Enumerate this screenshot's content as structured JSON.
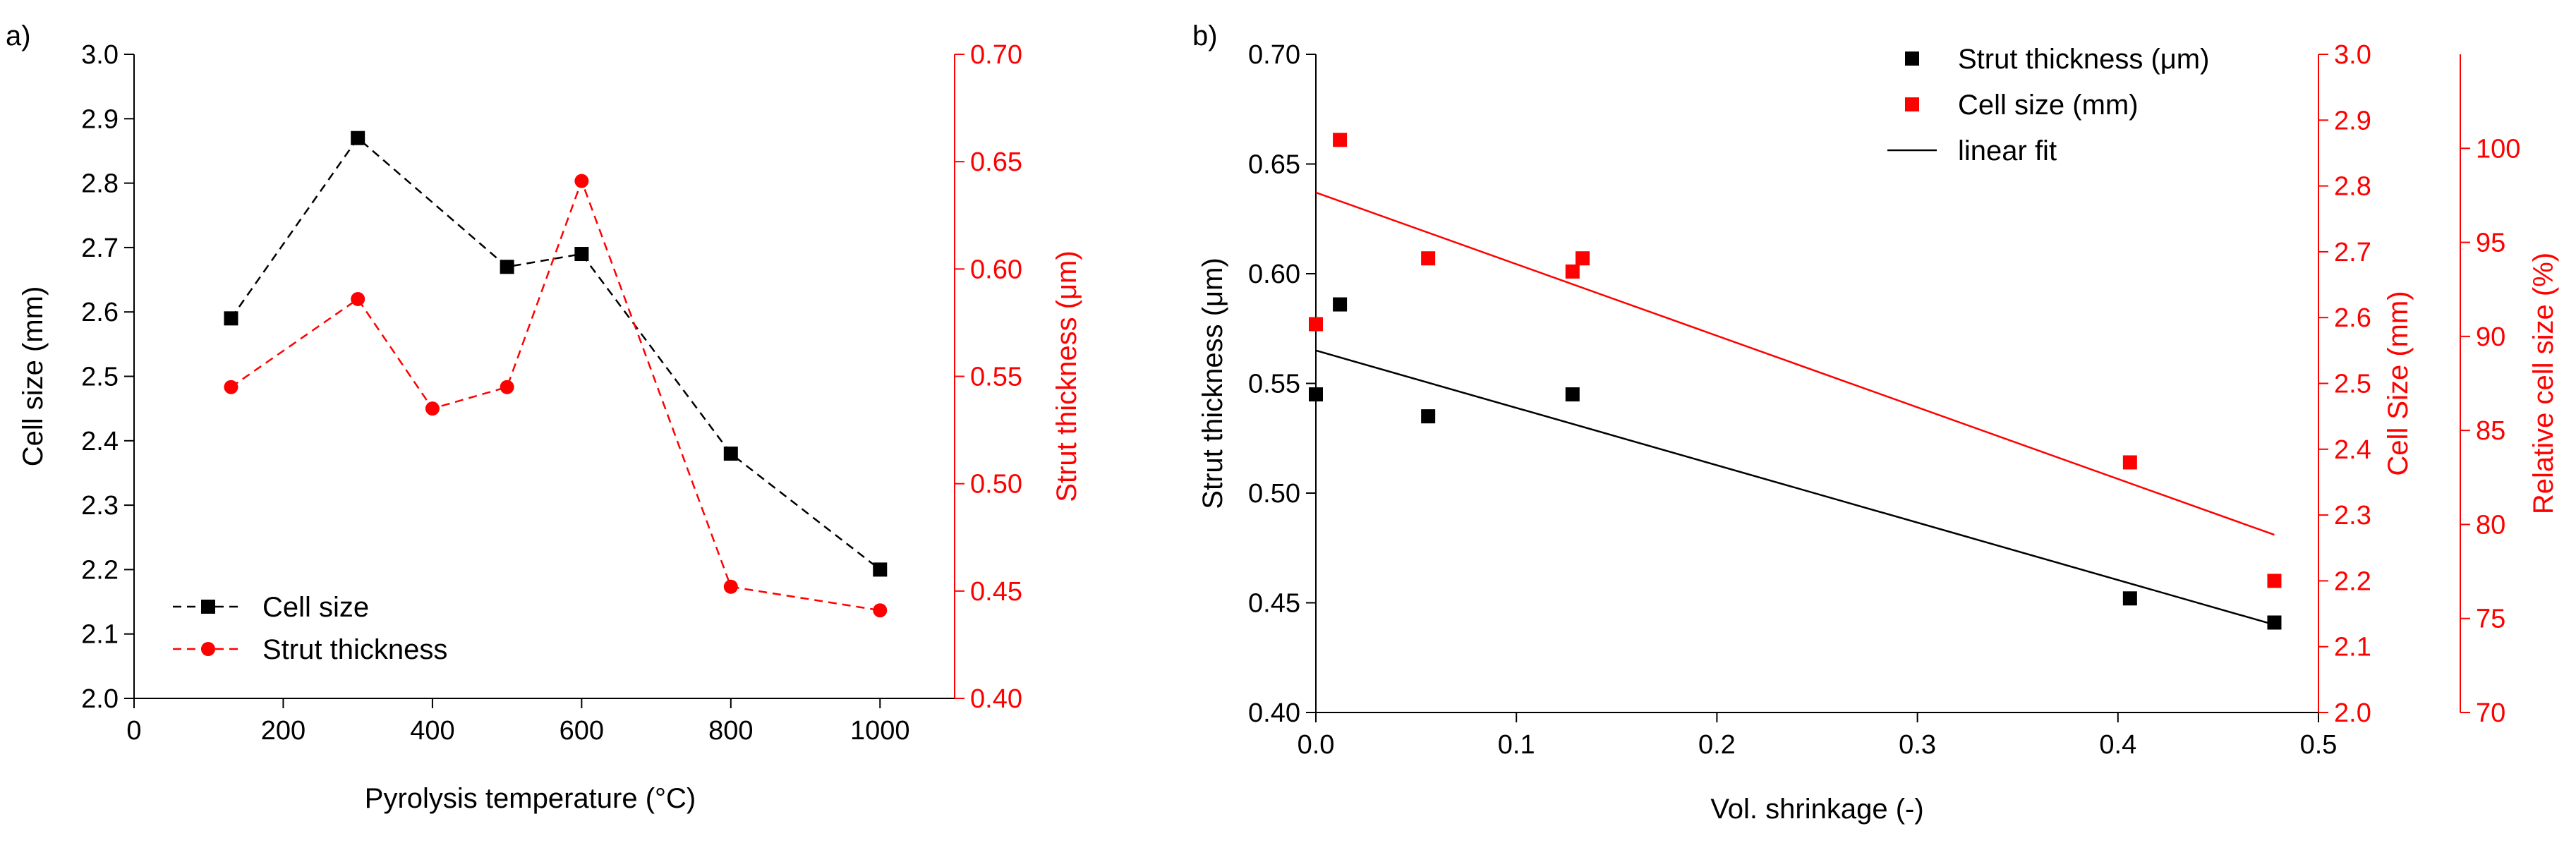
{
  "chart_data": [
    {
      "panel_label": "a)",
      "type": "line",
      "xlabel": "Pyrolysis temperature (°C)",
      "xlim": [
        0,
        1100
      ],
      "xticks": [
        0,
        200,
        400,
        600,
        800,
        1000
      ],
      "ylabel_left": "Cell size (mm)",
      "ylim_left": [
        2.0,
        3.0
      ],
      "yticks_left": [
        "2.0",
        "2.1",
        "2.2",
        "2.3",
        "2.4",
        "2.5",
        "2.6",
        "2.7",
        "2.8",
        "2.9",
        "3.0"
      ],
      "ylabel_right": "Strut thickness (μm)",
      "ylim_right": [
        0.4,
        0.7
      ],
      "yticks_right": [
        "0.40",
        "0.45",
        "0.50",
        "0.55",
        "0.60",
        "0.65",
        "0.70"
      ],
      "legend_position": "bottom-left",
      "series": [
        {
          "name": "Cell size",
          "axis": "left",
          "color": "#000000",
          "marker": "square",
          "line": "dashed",
          "x": [
            130,
            300,
            500,
            600,
            800,
            1000
          ],
          "y": [
            2.59,
            2.87,
            2.67,
            2.69,
            2.38,
            2.2
          ]
        },
        {
          "name": "Strut thickness",
          "axis": "right",
          "color": "#ff0000",
          "marker": "circle",
          "line": "dashed",
          "x": [
            130,
            300,
            400,
            500,
            600,
            800,
            1000
          ],
          "y": [
            0.545,
            0.586,
            0.535,
            0.545,
            0.641,
            0.452,
            0.441
          ]
        }
      ]
    },
    {
      "panel_label": "b)",
      "type": "scatter",
      "xlabel": "Vol. shrinkage (-)",
      "xlim": [
        0,
        0.5
      ],
      "xticks": [
        "0.0",
        "0.1",
        "0.2",
        "0.3",
        "0.4",
        "0.5"
      ],
      "ylabel_left": "Strut thickness (μm)",
      "ylim_left": [
        0.4,
        0.7
      ],
      "yticks_left": [
        "0.40",
        "0.45",
        "0.50",
        "0.55",
        "0.60",
        "0.65",
        "0.70"
      ],
      "ylabel_right": "Cell Size (mm)",
      "ylim_right": [
        2.0,
        3.0
      ],
      "yticks_right": [
        "2.0",
        "2.1",
        "2.2",
        "2.3",
        "2.4",
        "2.5",
        "2.6",
        "2.7",
        "2.8",
        "2.9",
        "3.0"
      ],
      "ylabel_right2": "Relative cell size (%)",
      "ylim_right2": [
        70,
        105
      ],
      "yticks_right2": [
        "70",
        "75",
        "80",
        "85",
        "90",
        "95",
        "100"
      ],
      "legend_position": "top-right",
      "legend": [
        "Strut thickness (μm)",
        "Cell size (mm)",
        "linear fit"
      ],
      "series": [
        {
          "name": "Strut thickness (μm)",
          "axis": "left",
          "color": "#000000",
          "marker": "square",
          "x": [
            0.0,
            0.012,
            0.056,
            0.128,
            0.406,
            0.478
          ],
          "y": [
            0.545,
            0.586,
            0.535,
            0.545,
            0.452,
            0.441
          ]
        },
        {
          "name": "Cell size (mm)",
          "axis": "right",
          "color": "#ff0000",
          "marker": "square",
          "x": [
            0.0,
            0.012,
            0.056,
            0.128,
            0.133,
            0.406,
            0.478
          ],
          "y": [
            2.59,
            2.87,
            2.69,
            2.67,
            2.69,
            2.38,
            2.2
          ]
        }
      ],
      "fits": [
        {
          "name": "linear fit",
          "axis": "left",
          "color": "#000000",
          "x": [
            0.0,
            0.478
          ],
          "y": [
            0.565,
            0.44
          ]
        },
        {
          "name": "linear fit",
          "axis": "right",
          "color": "#ff0000",
          "x": [
            0.0,
            0.478
          ],
          "y": [
            2.79,
            2.27
          ]
        }
      ]
    }
  ]
}
